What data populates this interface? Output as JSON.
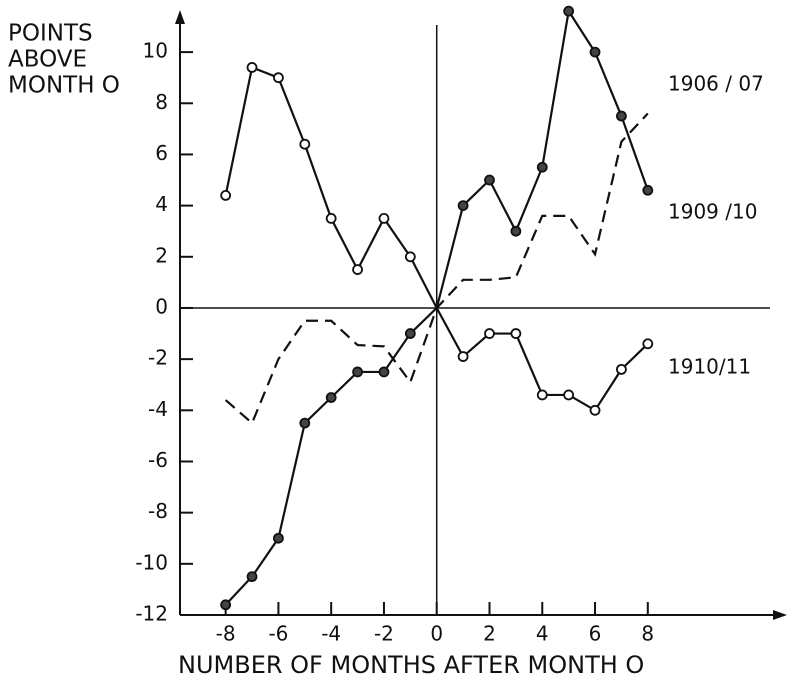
{
  "chart_data": {
    "type": "line",
    "y_label": [
      "POINTS",
      "ABOVE",
      "MONTH O"
    ],
    "x_label": "NUMBER OF MONTHS AFTER MONTH O",
    "x": [
      -8,
      -7,
      -6,
      -5,
      -4,
      -3,
      -2,
      -1,
      0,
      1,
      2,
      3,
      4,
      5,
      6,
      7,
      8
    ],
    "series": [
      {
        "name": "1906 / 07",
        "color": "#111111",
        "marker": "none",
        "dashed": true,
        "values": [
          -3.6,
          -4.5,
          -2.0,
          -0.5,
          -0.5,
          -1.45,
          -1.5,
          -2.9,
          0,
          1.1,
          1.1,
          1.2,
          3.6,
          3.6,
          2.1,
          6.5,
          7.6
        ]
      },
      {
        "name": "1909 /10",
        "color": "#111111",
        "marker": "filled",
        "dashed": false,
        "values": [
          -11.6,
          -10.5,
          -9.0,
          -4.5,
          -3.5,
          -2.5,
          -2.5,
          -1.0,
          0,
          4.0,
          5.0,
          3.0,
          5.5,
          11.6,
          10.0,
          7.5,
          4.6
        ]
      },
      {
        "name": "1910/11",
        "color": "#111111",
        "marker": "open",
        "dashed": false,
        "values": [
          4.4,
          9.4,
          9.0,
          6.4,
          3.5,
          1.5,
          3.5,
          2.0,
          0,
          -1.9,
          -1.0,
          -1.0,
          -3.4,
          -3.4,
          -4.0,
          -2.4,
          -1.4
        ]
      }
    ],
    "xlim": [
      -9.73,
      13.2
    ],
    "ylim": [
      -12,
      11.45
    ],
    "xticks": [
      -8,
      -6,
      -4,
      -2,
      0,
      2,
      4,
      6,
      8
    ],
    "yticks": [
      -12,
      -10,
      -8,
      -6,
      -4,
      -2,
      0,
      2,
      4,
      6,
      8,
      10
    ],
    "grid": false
  }
}
